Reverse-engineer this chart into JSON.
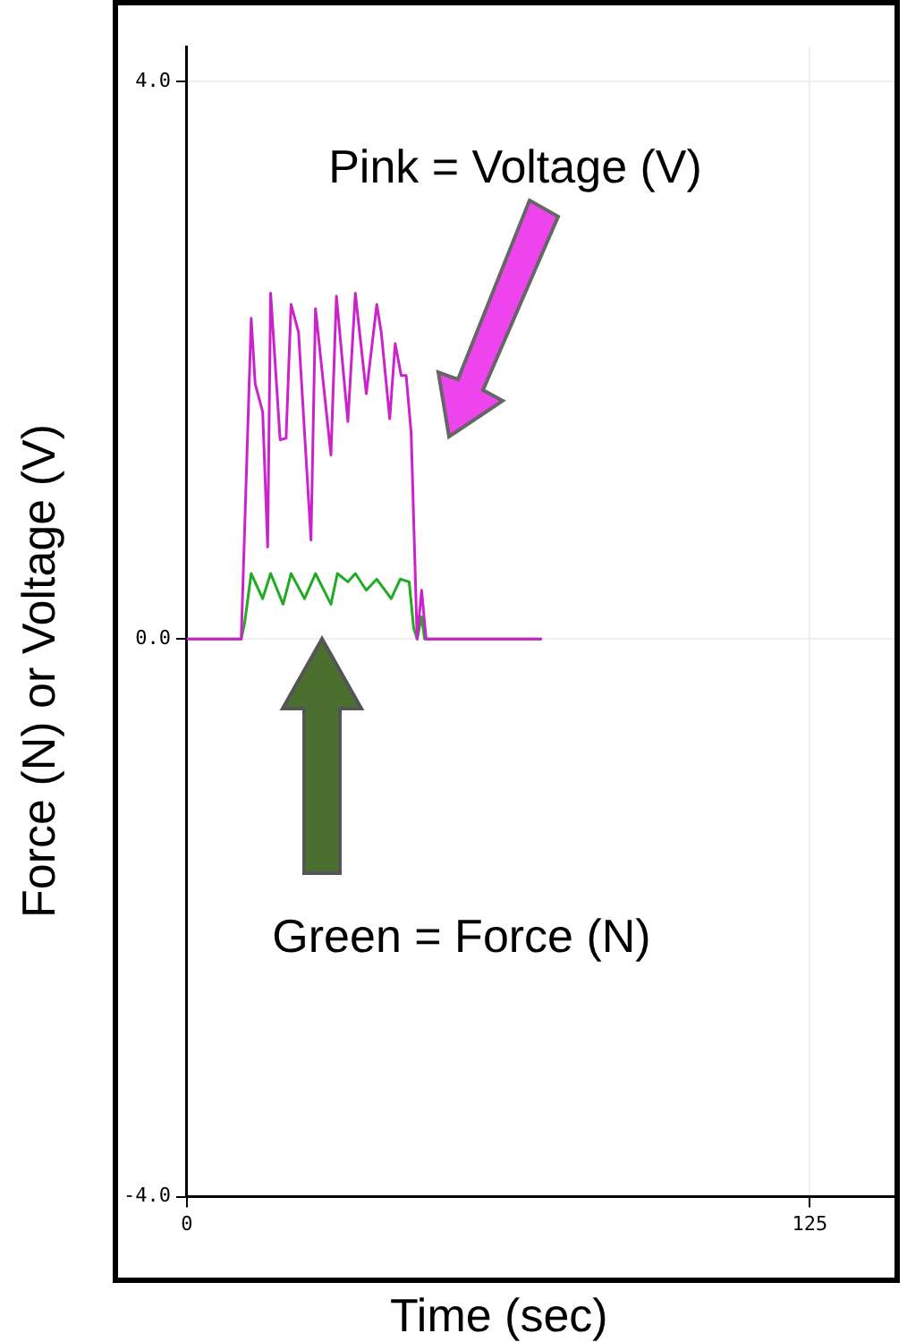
{
  "chart_data": {
    "type": "line",
    "xlabel": "Time (sec)",
    "ylabel": "Force (N) or Voltage (V)",
    "annotations": [
      "Pink = Voltage (V)",
      "Green = Force (N)"
    ],
    "xlim": [
      0,
      142
    ],
    "xticks": [
      0,
      125
    ],
    "ylim": [
      -4,
      4.25
    ],
    "yticks": [
      {
        "value": -4,
        "label": "-4.0"
      },
      {
        "value": 0,
        "label": "0.0"
      },
      {
        "value": 4,
        "label": "4.0"
      }
    ],
    "grid": true,
    "legend": false,
    "marker": "none",
    "line_style": "solid",
    "series": [
      {
        "color": "#cc22cc",
        "x": [
          0,
          10.9,
          12.9,
          13.7,
          15.2,
          16.2,
          16.8,
          18.7,
          19.9,
          20.9,
          22.4,
          24.9,
          25.8,
          28.9,
          30.0,
          32.3,
          33.8,
          36.0,
          38.1,
          39.0,
          40.7,
          41.8,
          43.0,
          44.0,
          45.0,
          46.2,
          47.1,
          48.0,
          71.2
        ],
        "values": [
          0,
          0,
          2.3,
          1.83,
          1.63,
          0.66,
          2.48,
          1.43,
          1.44,
          2.4,
          2.2,
          0.71,
          2.37,
          1.32,
          2.46,
          1.56,
          2.48,
          1.76,
          2.4,
          2.2,
          1.58,
          2.12,
          1.89,
          1.89,
          1.48,
          0,
          0.35,
          0,
          0
        ]
      },
      {
        "color": "#22aa22",
        "x": [
          0,
          10.9,
          11.6,
          12.9,
          15.2,
          16.8,
          19.3,
          20.9,
          23.6,
          25.8,
          28.9,
          30.2,
          32.3,
          33.8,
          36.0,
          38.1,
          41.0,
          42.8,
          44.6,
          45.5,
          46.2,
          47.1,
          47.7,
          71.2
        ],
        "values": [
          0,
          0,
          0.12,
          0.47,
          0.29,
          0.47,
          0.25,
          0.47,
          0.29,
          0.47,
          0.25,
          0.47,
          0.41,
          0.47,
          0.35,
          0.43,
          0.29,
          0.43,
          0.41,
          0.08,
          0,
          0.16,
          0,
          0
        ]
      }
    ]
  }
}
